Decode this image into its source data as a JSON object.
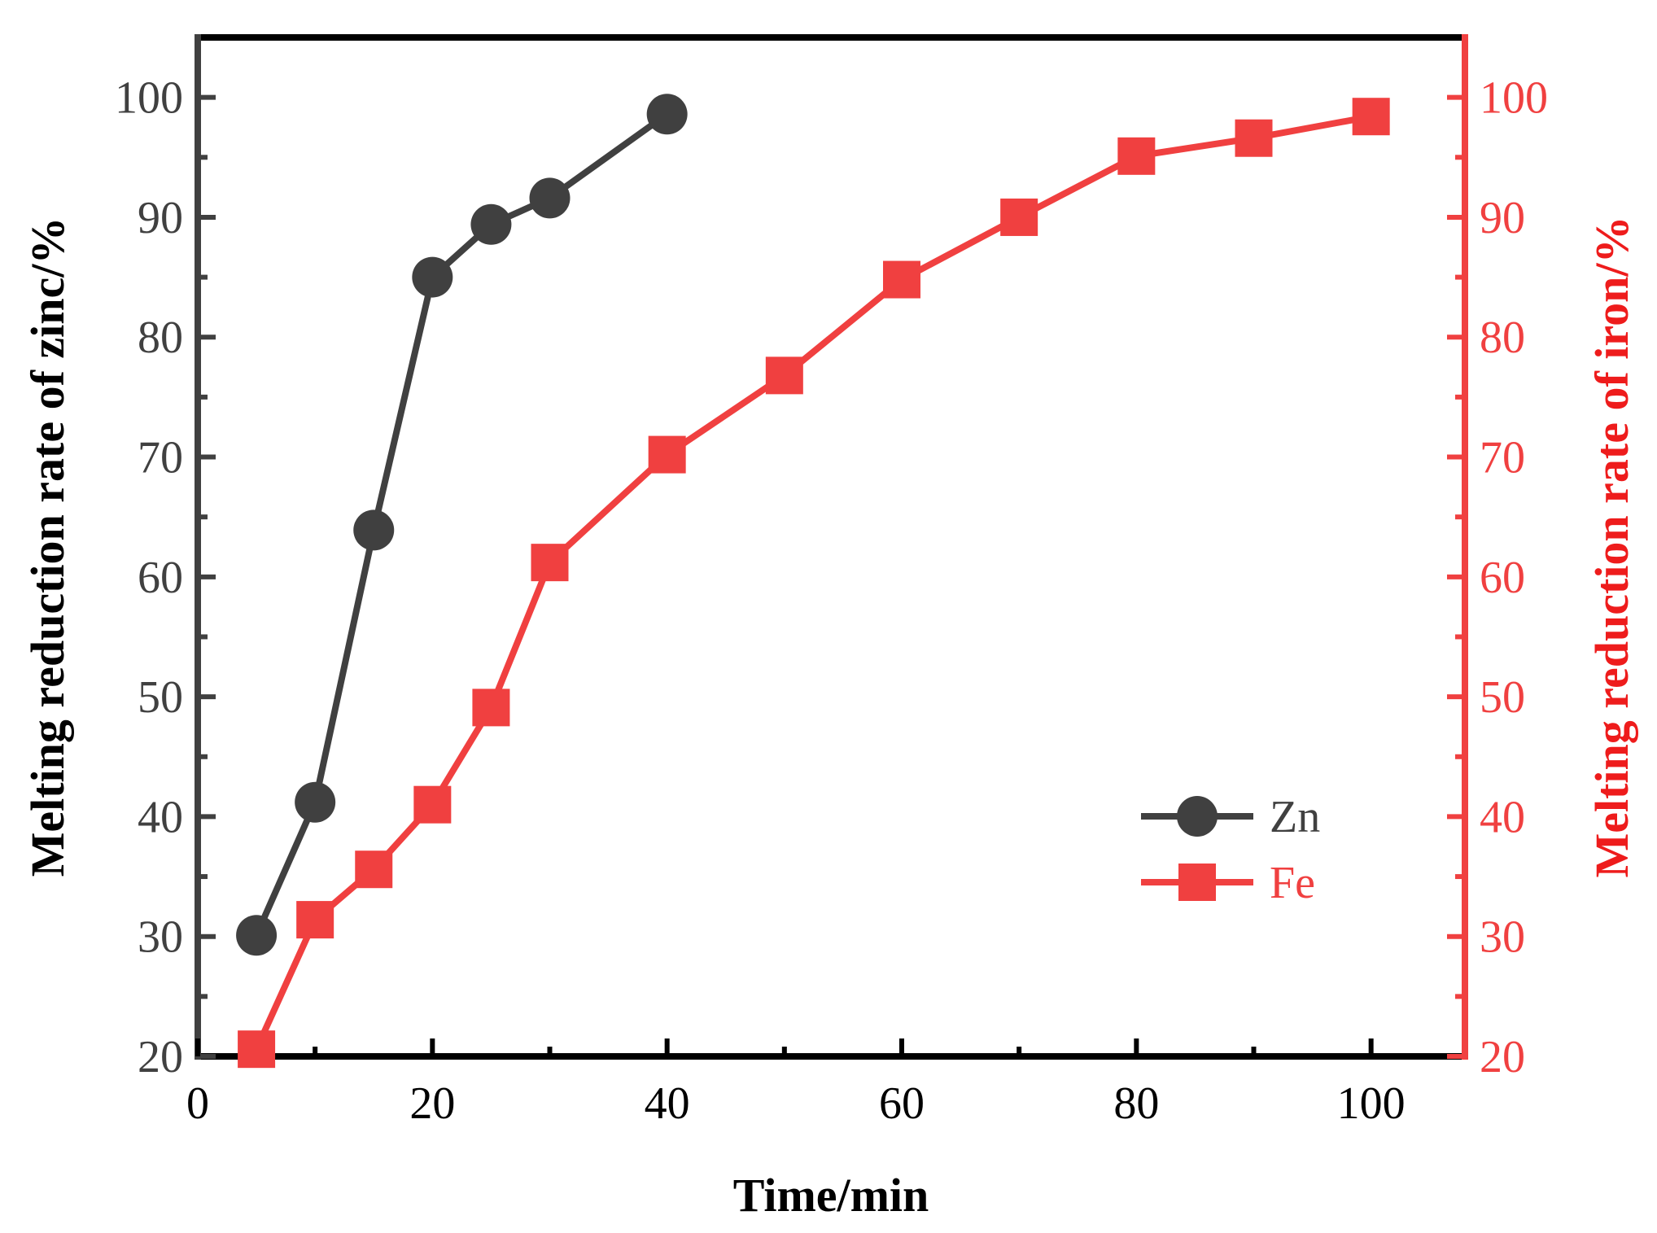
{
  "chart_data": {
    "type": "line",
    "title": "",
    "xlabel": "Time/min",
    "ylabel_left": "Melting reduction rate of zinc/%",
    "ylabel_right": "Melting reduction rate of iron/%",
    "xlim": [
      0,
      108
    ],
    "ylim_left": [
      20,
      105
    ],
    "ylim_right": [
      20,
      105
    ],
    "x_ticks": [
      0,
      20,
      40,
      60,
      80,
      100
    ],
    "y_ticks": [
      20,
      30,
      40,
      50,
      60,
      70,
      80,
      90,
      100
    ],
    "grid": false,
    "legend_position": "bottom-right",
    "series": [
      {
        "name": "Zn",
        "axis": "left",
        "color": "#404040",
        "marker": "circle",
        "x": [
          5,
          10,
          15,
          20,
          25,
          30,
          40
        ],
        "values": [
          30.1,
          41.2,
          63.9,
          85.0,
          89.4,
          91.6,
          98.6
        ]
      },
      {
        "name": "Fe",
        "axis": "right",
        "color": "#f04040",
        "marker": "square",
        "x": [
          5,
          10,
          15,
          20,
          25,
          30,
          40,
          50,
          60,
          70,
          80,
          90,
          100
        ],
        "values": [
          20.6,
          31.4,
          35.6,
          41.0,
          49.1,
          61.2,
          70.2,
          76.8,
          84.8,
          90.0,
          95.1,
          96.6,
          98.4
        ]
      }
    ]
  }
}
